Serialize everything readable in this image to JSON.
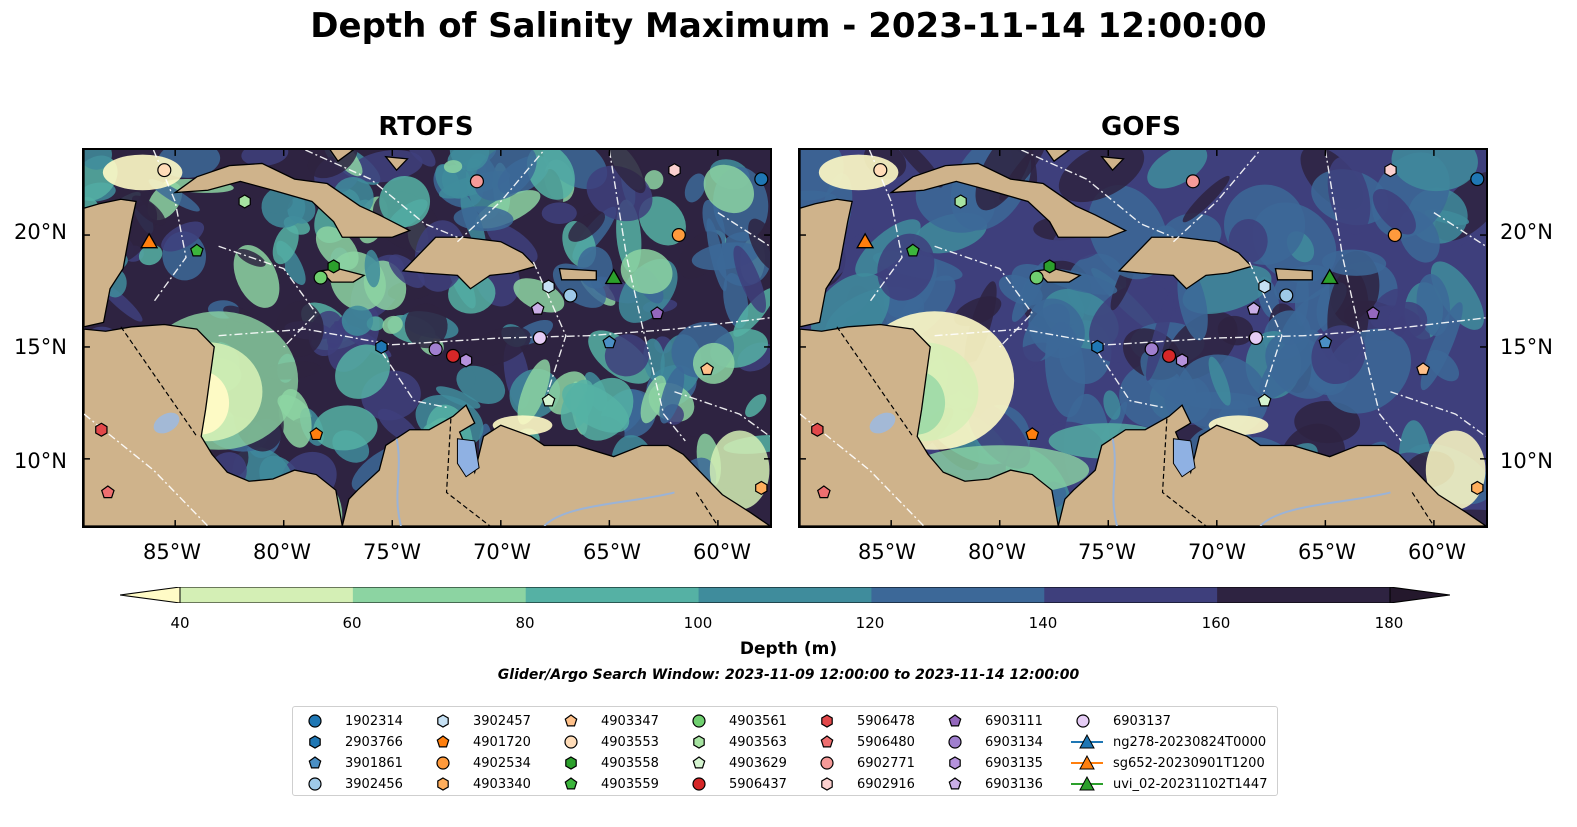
{
  "title": "Depth of Salinity Maximum - 2023-11-14 12:00:00",
  "panels": [
    {
      "title": "RTOFS"
    },
    {
      "title": "GOFS"
    }
  ],
  "axes": {
    "lat_labels": [
      "20°N",
      "15°N",
      "10°N"
    ],
    "lon_labels": [
      "85°W",
      "80°W",
      "75°W",
      "70°W",
      "65°W",
      "60°W"
    ]
  },
  "colorbar": {
    "label": "Depth (m)",
    "ticks": [
      "40",
      "60",
      "80",
      "100",
      "120",
      "140",
      "160",
      "180"
    ],
    "colors": [
      "#fffbc6",
      "#d4efb5",
      "#8cd4a2",
      "#55b1a4",
      "#3f8c9c",
      "#3c6898",
      "#3e3f7c",
      "#2e2341",
      "#24182c"
    ]
  },
  "search_window": "Glider/Argo Search Window: 2023-11-09 12:00:00 to 2023-11-14 12:00:00",
  "legend": [
    {
      "label": "1902314",
      "shape": "circle",
      "color": "#1f77b4"
    },
    {
      "label": "2903766",
      "shape": "hexagon",
      "color": "#1f77b4"
    },
    {
      "label": "3901861",
      "shape": "pentagon",
      "color": "#4a8fc4"
    },
    {
      "label": "3902456",
      "shape": "circle",
      "color": "#9ec9e8"
    },
    {
      "label": "3902457",
      "shape": "hexagon",
      "color": "#c6e1f4"
    },
    {
      "label": "4901720",
      "shape": "pentagon",
      "color": "#ff7f0e"
    },
    {
      "label": "4902534",
      "shape": "circle",
      "color": "#ff9a3c"
    },
    {
      "label": "4903340",
      "shape": "hexagon",
      "color": "#ffae5c"
    },
    {
      "label": "4903347",
      "shape": "pentagon",
      "color": "#ffc18a"
    },
    {
      "label": "4903553",
      "shape": "circle",
      "color": "#ffdcb8"
    },
    {
      "label": "4903558",
      "shape": "hexagon",
      "color": "#2ca02c"
    },
    {
      "label": "4903559",
      "shape": "pentagon",
      "color": "#3cb53c"
    },
    {
      "label": "4903561",
      "shape": "circle",
      "color": "#6fcf6f"
    },
    {
      "label": "4903563",
      "shape": "hexagon",
      "color": "#a6e3a1"
    },
    {
      "label": "4903629",
      "shape": "pentagon",
      "color": "#d5f4d0"
    },
    {
      "label": "5906437",
      "shape": "circle",
      "color": "#d62728"
    },
    {
      "label": "5906478",
      "shape": "hexagon",
      "color": "#e2484a"
    },
    {
      "label": "5906480",
      "shape": "pentagon",
      "color": "#ee6f70"
    },
    {
      "label": "6902771",
      "shape": "circle",
      "color": "#f59a98"
    },
    {
      "label": "6902916",
      "shape": "hexagon",
      "color": "#fbd0cf"
    },
    {
      "label": "6903111",
      "shape": "pentagon",
      "color": "#9467bd"
    },
    {
      "label": "6903134",
      "shape": "circle",
      "color": "#a07fcf"
    },
    {
      "label": "6903135",
      "shape": "hexagon",
      "color": "#b592dc"
    },
    {
      "label": "6903136",
      "shape": "pentagon",
      "color": "#caaee6"
    },
    {
      "label": "6903137",
      "shape": "circle",
      "color": "#e5ccf5"
    },
    {
      "label": "ng278-20230824T0000",
      "shape": "triangle-line",
      "color": "#1f77b4"
    },
    {
      "label": "sg652-20230901T1200",
      "shape": "triangle-line",
      "color": "#ff7f0e"
    },
    {
      "label": "uvi_02-20231102T1447",
      "shape": "triangle-line",
      "color": "#2ca02c"
    }
  ],
  "platforms": [
    {
      "label": "1902314",
      "lon": -58.0,
      "lat": 22.5
    },
    {
      "label": "2903766",
      "lon": -75.5,
      "lat": 15.0
    },
    {
      "label": "3901861",
      "lon": -65.0,
      "lat": 15.2
    },
    {
      "label": "3902456",
      "lon": -66.8,
      "lat": 17.3
    },
    {
      "label": "3902457",
      "lon": -67.8,
      "lat": 17.7
    },
    {
      "label": "4901720",
      "lon": -78.5,
      "lat": 11.1
    },
    {
      "label": "4902534",
      "lon": -61.8,
      "lat": 20.0
    },
    {
      "label": "4903340",
      "lon": -58.0,
      "lat": 8.7
    },
    {
      "label": "4903347",
      "lon": -60.5,
      "lat": 14.0
    },
    {
      "label": "4903553",
      "lon": -85.5,
      "lat": 22.9
    },
    {
      "label": "4903558",
      "lon": -77.7,
      "lat": 18.6
    },
    {
      "label": "4903559",
      "lon": -84.0,
      "lat": 19.3
    },
    {
      "label": "4903561",
      "lon": -78.3,
      "lat": 18.1
    },
    {
      "label": "4903563",
      "lon": -81.8,
      "lat": 21.5
    },
    {
      "label": "4903629",
      "lon": -67.8,
      "lat": 12.6
    },
    {
      "label": "5906437",
      "lon": -72.2,
      "lat": 14.6
    },
    {
      "label": "5906478",
      "lon": -88.4,
      "lat": 11.3
    },
    {
      "label": "5906480",
      "lon": -88.1,
      "lat": 8.5
    },
    {
      "label": "6902771",
      "lon": -71.1,
      "lat": 22.4
    },
    {
      "label": "6902916",
      "lon": -62.0,
      "lat": 22.9
    },
    {
      "label": "6903111",
      "lon": -62.8,
      "lat": 16.5
    },
    {
      "label": "6903134",
      "lon": -73.0,
      "lat": 14.9
    },
    {
      "label": "6903135",
      "lon": -71.6,
      "lat": 14.4
    },
    {
      "label": "6903136",
      "lon": -68.3,
      "lat": 16.7
    },
    {
      "label": "6903137",
      "lon": -68.2,
      "lat": 15.4
    },
    {
      "label": "sg652-20230901T1200",
      "lon": -86.2,
      "lat": 19.7
    },
    {
      "label": "uvi_02-20231102T1447",
      "lon": -64.8,
      "lat": 18.1
    }
  ]
}
